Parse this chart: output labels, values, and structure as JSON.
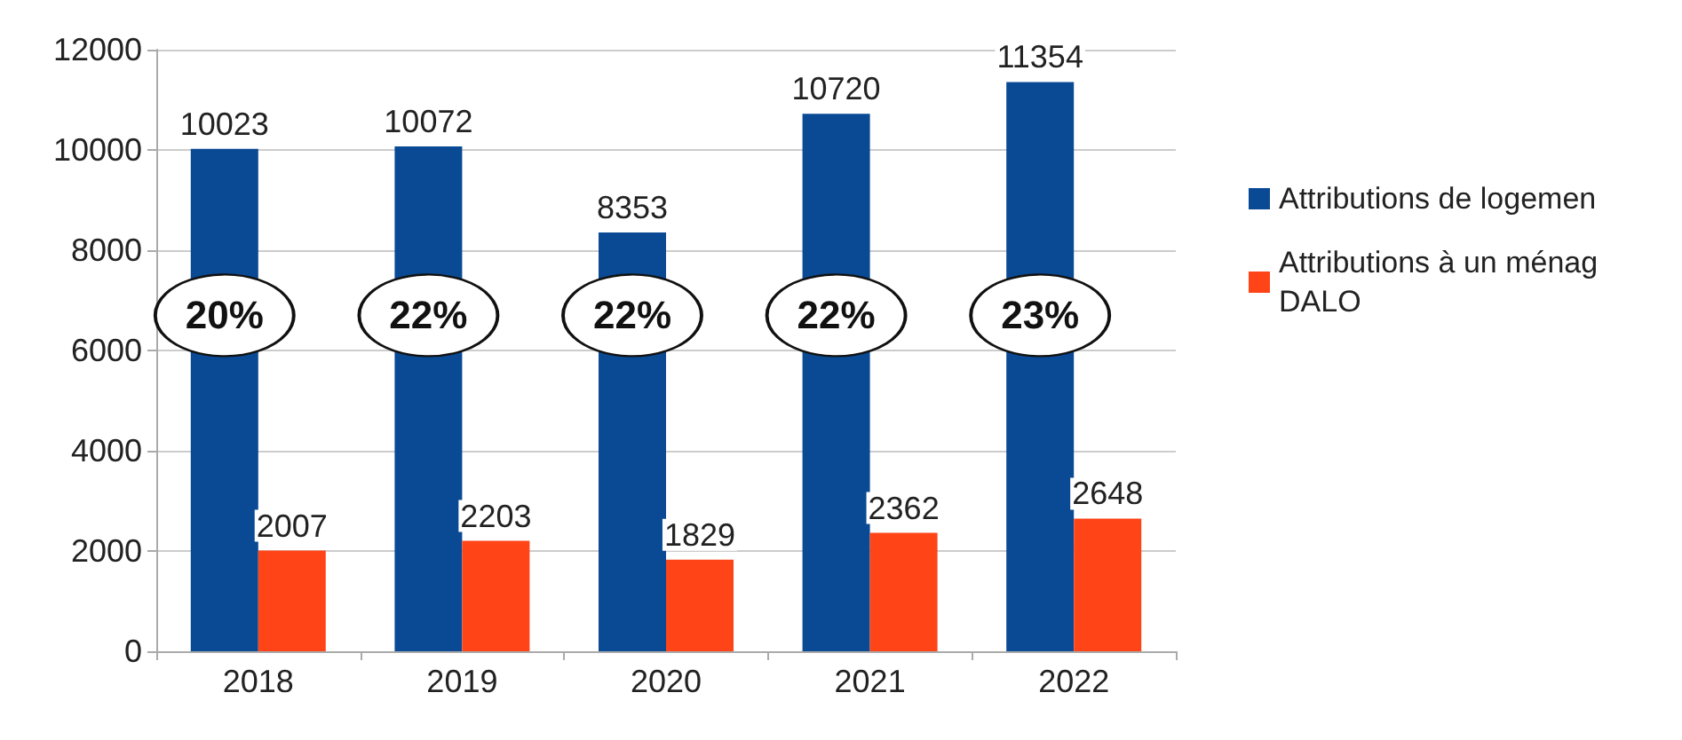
{
  "chart_data": {
    "type": "bar",
    "categories": [
      "2018",
      "2019",
      "2020",
      "2021",
      "2022"
    ],
    "series": [
      {
        "name": "Attributions de logemen",
        "color": "#0a4a94",
        "values": [
          10023,
          10072,
          8353,
          10720,
          11354
        ]
      },
      {
        "name": "Attributions à un ménag\nDALO",
        "color": "#ff4418",
        "values": [
          2007,
          2203,
          1829,
          2362,
          2648
        ]
      }
    ],
    "ylim": [
      0,
      12000
    ],
    "yticks": [
      0,
      2000,
      4000,
      6000,
      8000,
      10000,
      12000
    ],
    "grid": "y",
    "legend": "right",
    "data_labels": true,
    "annotations": [
      {
        "text": "20%",
        "x": "2018",
        "y": 6700
      },
      {
        "text": "22%",
        "x": "2019",
        "y": 6700
      },
      {
        "text": "22%",
        "x": "2020",
        "y": 6700
      },
      {
        "text": "22%",
        "x": "2021",
        "y": 6700
      },
      {
        "text": "23%",
        "x": "2022",
        "y": 6700
      }
    ]
  }
}
